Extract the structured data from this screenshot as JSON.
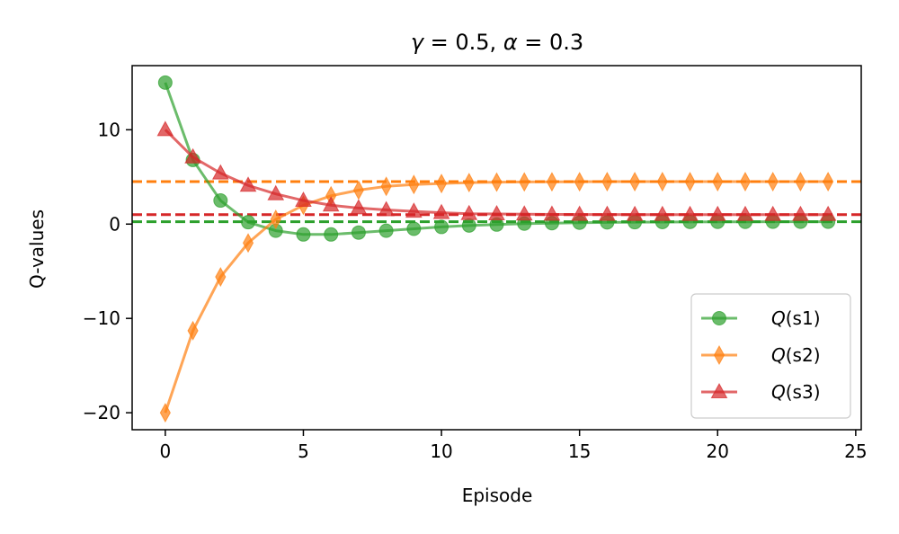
{
  "chart_data": {
    "type": "line",
    "title": "γ = 0.5, α = 0.3",
    "xlabel": "Episode",
    "ylabel": "Q-values",
    "xlim": [
      -1.2,
      25.2
    ],
    "ylim": [
      -21.8,
      16.8
    ],
    "xticks": [
      0,
      5,
      10,
      15,
      20,
      25
    ],
    "yticks": [
      -20,
      -10,
      0,
      10
    ],
    "ytick_labels": [
      "−20",
      "−10",
      "0",
      "10"
    ],
    "legend_position": "lower-right",
    "grid": false,
    "x": [
      0,
      1,
      2,
      3,
      4,
      5,
      6,
      7,
      8,
      9,
      10,
      11,
      12,
      13,
      14,
      15,
      16,
      17,
      18,
      19,
      20,
      21,
      22,
      23,
      24
    ],
    "series": [
      {
        "name": "Q(s1)",
        "color": "#2ca02c",
        "marker": "circle",
        "target": 0.25,
        "values": [
          15.0,
          6.8,
          2.5,
          0.2,
          -0.7,
          -1.1,
          -1.1,
          -0.9,
          -0.7,
          -0.5,
          -0.3,
          -0.15,
          -0.05,
          0.05,
          0.1,
          0.15,
          0.18,
          0.2,
          0.22,
          0.23,
          0.24,
          0.24,
          0.25,
          0.25,
          0.25
        ]
      },
      {
        "name": "Q(s2)",
        "color": "#ff7f0e",
        "marker": "thin_diamond",
        "target": 4.5,
        "values": [
          -20.0,
          -11.3,
          -5.6,
          -2.0,
          0.5,
          2.0,
          3.0,
          3.6,
          4.0,
          4.2,
          4.3,
          4.4,
          4.45,
          4.47,
          4.48,
          4.49,
          4.5,
          4.5,
          4.5,
          4.5,
          4.5,
          4.5,
          4.5,
          4.5,
          4.5
        ]
      },
      {
        "name": "Q(s3)",
        "color": "#d62728",
        "marker": "triangle",
        "target": 1.0,
        "values": [
          10.0,
          7.1,
          5.4,
          4.1,
          3.2,
          2.5,
          2.0,
          1.7,
          1.5,
          1.35,
          1.2,
          1.1,
          1.07,
          1.05,
          1.03,
          1.02,
          1.01,
          1.0,
          1.0,
          1.0,
          1.0,
          1.0,
          1.0,
          1.0,
          1.0
        ]
      }
    ]
  }
}
